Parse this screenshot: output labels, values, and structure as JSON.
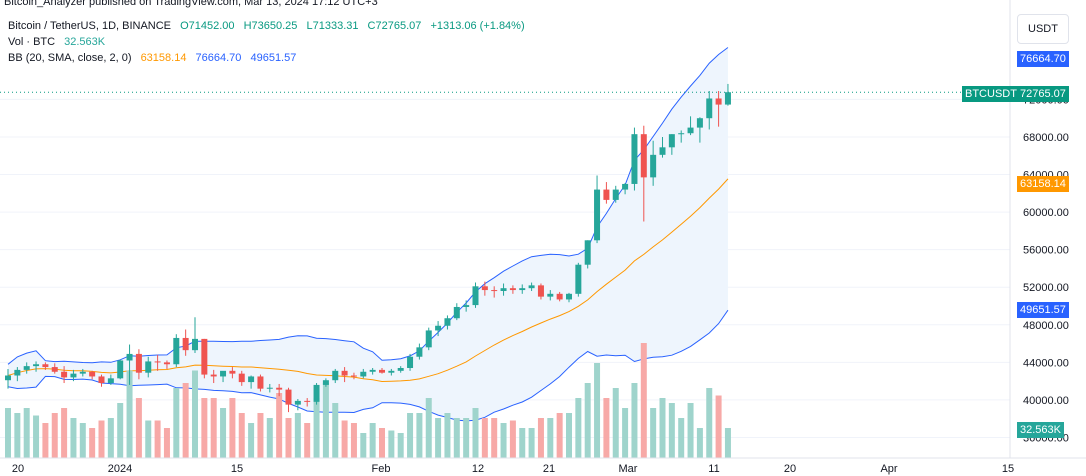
{
  "publisher_line": "Bitcoin_Analyzer published on TradingView.com, Mar 13, 2024 17:12 UTC+3",
  "legend": {
    "symbol": "Bitcoin / TetherUS, 1D, BINANCE",
    "o": "O71452.00",
    "h": "H73650.25",
    "l": "L71333.31",
    "c": "C72765.07",
    "change": "+1313.06 (+1.84%)",
    "vol_label": "Vol · BTC",
    "vol_value": "32.563K",
    "bb_label": "BB (20, SMA, close, 2, 0)",
    "bb_mid": "63158.14",
    "bb_upper": "76664.70",
    "bb_lower": "49651.57"
  },
  "currency_button": "USDT",
  "tags": {
    "upper": "76664.70",
    "symbol_name": "BTCUSDT",
    "price": "72765.07",
    "mid": "63158.14",
    "lower": "49651.57",
    "volume": "32.563K"
  },
  "colors": {
    "up": "#26a69a",
    "down": "#ef5350",
    "vol_up": "#9fd4cc",
    "vol_down": "#f7a9a7",
    "band": "#2962ff",
    "basis": "#ff9800",
    "band_fill": "#eef5fd"
  },
  "chart_data": {
    "type": "candlestick",
    "y_ticks": [
      "72000.00",
      "68000.00",
      "64000.00",
      "60000.00",
      "56000.00",
      "52000.00",
      "48000.00",
      "44000.00",
      "40000.00",
      "36000.00"
    ],
    "x_ticks": [
      "20",
      "2024",
      "15",
      "Feb",
      "12",
      "21",
      "Mar",
      "11",
      "20",
      "Apr",
      "15"
    ],
    "candles": [
      {
        "o": 42100,
        "h": 43300,
        "l": 41200,
        "c": 42600
      },
      {
        "o": 42600,
        "h": 43500,
        "l": 42000,
        "c": 43200
      },
      {
        "o": 43200,
        "h": 44000,
        "l": 42800,
        "c": 43600
      },
      {
        "o": 43600,
        "h": 44100,
        "l": 43000,
        "c": 43800
      },
      {
        "o": 43800,
        "h": 44000,
        "l": 43200,
        "c": 43500
      },
      {
        "o": 43500,
        "h": 43900,
        "l": 42800,
        "c": 43000
      },
      {
        "o": 43000,
        "h": 43600,
        "l": 41800,
        "c": 42400
      },
      {
        "o": 42400,
        "h": 43200,
        "l": 42000,
        "c": 42800
      },
      {
        "o": 42800,
        "h": 43300,
        "l": 42500,
        "c": 43000
      },
      {
        "o": 43000,
        "h": 43100,
        "l": 42200,
        "c": 42500
      },
      {
        "o": 42500,
        "h": 42700,
        "l": 41400,
        "c": 41800
      },
      {
        "o": 41800,
        "h": 42700,
        "l": 41600,
        "c": 42300
      },
      {
        "o": 42300,
        "h": 44300,
        "l": 42200,
        "c": 44200
      },
      {
        "o": 44200,
        "h": 45900,
        "l": 41600,
        "c": 44900
      },
      {
        "o": 44900,
        "h": 45400,
        "l": 42200,
        "c": 42900
      },
      {
        "o": 42900,
        "h": 44600,
        "l": 42400,
        "c": 44100
      },
      {
        "o": 44100,
        "h": 44800,
        "l": 43100,
        "c": 44000
      },
      {
        "o": 44000,
        "h": 44200,
        "l": 43300,
        "c": 43800
      },
      {
        "o": 43800,
        "h": 47000,
        "l": 43500,
        "c": 46600
      },
      {
        "o": 46600,
        "h": 47500,
        "l": 44700,
        "c": 45300
      },
      {
        "o": 45300,
        "h": 48800,
        "l": 45000,
        "c": 46500
      },
      {
        "o": 46500,
        "h": 46500,
        "l": 42300,
        "c": 42700
      },
      {
        "o": 42700,
        "h": 43200,
        "l": 41800,
        "c": 42500
      },
      {
        "o": 42500,
        "h": 43000,
        "l": 41900,
        "c": 43100
      },
      {
        "o": 43100,
        "h": 43500,
        "l": 42300,
        "c": 42800
      },
      {
        "o": 42800,
        "h": 43100,
        "l": 41500,
        "c": 41900
      },
      {
        "o": 41900,
        "h": 42600,
        "l": 41200,
        "c": 42500
      },
      {
        "o": 42500,
        "h": 42700,
        "l": 40900,
        "c": 41200
      },
      {
        "o": 41200,
        "h": 41700,
        "l": 40800,
        "c": 41300
      },
      {
        "o": 41300,
        "h": 41700,
        "l": 40400,
        "c": 41100
      },
      {
        "o": 41100,
        "h": 41300,
        "l": 38700,
        "c": 39500
      },
      {
        "o": 39500,
        "h": 40100,
        "l": 38900,
        "c": 39900
      },
      {
        "o": 39900,
        "h": 40200,
        "l": 39300,
        "c": 39800
      },
      {
        "o": 39800,
        "h": 41800,
        "l": 39500,
        "c": 41600
      },
      {
        "o": 41600,
        "h": 42300,
        "l": 41400,
        "c": 42100
      },
      {
        "o": 42100,
        "h": 43300,
        "l": 41800,
        "c": 43100
      },
      {
        "o": 43100,
        "h": 43500,
        "l": 41900,
        "c": 42600
      },
      {
        "o": 42600,
        "h": 42900,
        "l": 42200,
        "c": 42500
      },
      {
        "o": 42500,
        "h": 43300,
        "l": 42300,
        "c": 43000
      },
      {
        "o": 43000,
        "h": 43400,
        "l": 42700,
        "c": 43200
      },
      {
        "o": 43200,
        "h": 43400,
        "l": 42800,
        "c": 42900
      },
      {
        "o": 42900,
        "h": 43300,
        "l": 42600,
        "c": 43100
      },
      {
        "o": 43100,
        "h": 43600,
        "l": 42900,
        "c": 43400
      },
      {
        "o": 43400,
        "h": 44900,
        "l": 43100,
        "c": 44600
      },
      {
        "o": 44600,
        "h": 46000,
        "l": 44300,
        "c": 45600
      },
      {
        "o": 45600,
        "h": 47700,
        "l": 45300,
        "c": 47400
      },
      {
        "o": 47400,
        "h": 48400,
        "l": 46800,
        "c": 47900
      },
      {
        "o": 47900,
        "h": 49000,
        "l": 47500,
        "c": 48700
      },
      {
        "o": 48700,
        "h": 50300,
        "l": 48500,
        "c": 49900
      },
      {
        "o": 49900,
        "h": 50600,
        "l": 49400,
        "c": 50100
      },
      {
        "o": 50100,
        "h": 52500,
        "l": 49800,
        "c": 52100
      },
      {
        "o": 52100,
        "h": 52600,
        "l": 51100,
        "c": 51700
      },
      {
        "o": 51700,
        "h": 52100,
        "l": 50900,
        "c": 51600
      },
      {
        "o": 51600,
        "h": 52400,
        "l": 51100,
        "c": 51900
      },
      {
        "o": 51900,
        "h": 52200,
        "l": 51300,
        "c": 51700
      },
      {
        "o": 51700,
        "h": 52300,
        "l": 51300,
        "c": 51900
      },
      {
        "o": 51900,
        "h": 52500,
        "l": 51600,
        "c": 52200
      },
      {
        "o": 52200,
        "h": 52400,
        "l": 50700,
        "c": 51000
      },
      {
        "o": 51000,
        "h": 51700,
        "l": 50600,
        "c": 51300
      },
      {
        "o": 51300,
        "h": 51500,
        "l": 50500,
        "c": 50700
      },
      {
        "o": 50700,
        "h": 51400,
        "l": 50400,
        "c": 51300
      },
      {
        "o": 51300,
        "h": 54600,
        "l": 51000,
        "c": 54400
      },
      {
        "o": 54400,
        "h": 57000,
        "l": 54000,
        "c": 57000
      },
      {
        "o": 57000,
        "h": 63900,
        "l": 56700,
        "c": 62400
      },
      {
        "o": 62400,
        "h": 63200,
        "l": 60900,
        "c": 61300
      },
      {
        "o": 61300,
        "h": 62800,
        "l": 61000,
        "c": 62400
      },
      {
        "o": 62400,
        "h": 63100,
        "l": 61900,
        "c": 63000
      },
      {
        "o": 63000,
        "h": 69000,
        "l": 62300,
        "c": 68300
      },
      {
        "o": 68300,
        "h": 69200,
        "l": 59000,
        "c": 63700
      },
      {
        "o": 63700,
        "h": 67600,
        "l": 62800,
        "c": 66100
      },
      {
        "o": 66100,
        "h": 68000,
        "l": 65800,
        "c": 66900
      },
      {
        "o": 66900,
        "h": 68300,
        "l": 66100,
        "c": 68300
      },
      {
        "o": 68300,
        "h": 68700,
        "l": 67400,
        "c": 68400
      },
      {
        "o": 68400,
        "h": 70200,
        "l": 68200,
        "c": 69000
      },
      {
        "o": 69000,
        "h": 70100,
        "l": 67400,
        "c": 70000
      },
      {
        "o": 70000,
        "h": 72900,
        "l": 68800,
        "c": 72100
      },
      {
        "o": 72100,
        "h": 72900,
        "l": 69100,
        "c": 71450
      },
      {
        "o": 71452,
        "h": 73650.25,
        "l": 71333.31,
        "c": 72765.07
      }
    ],
    "volumes": [
      20,
      18,
      20,
      17,
      14,
      18,
      20,
      16,
      14,
      12,
      15,
      16,
      22,
      35,
      24,
      15,
      15,
      12,
      28,
      30,
      35,
      24,
      24,
      20,
      24,
      18,
      14,
      18,
      16,
      26,
      16,
      18,
      14,
      24,
      30,
      22,
      15,
      14,
      10,
      14,
      12,
      11,
      10,
      18,
      18,
      24,
      16,
      18,
      16,
      16,
      20,
      16,
      16,
      14,
      15,
      12,
      12,
      16,
      16,
      18,
      18,
      24,
      30,
      38,
      24,
      28,
      20,
      30,
      46,
      20,
      24,
      22,
      16,
      22,
      12,
      28,
      25,
      12
    ],
    "volume_note": "relative bar heights"
  }
}
